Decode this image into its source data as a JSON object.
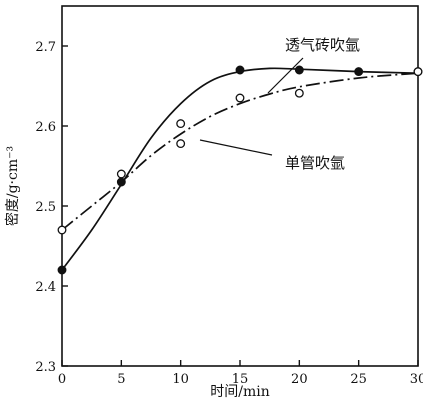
{
  "chart_data": {
    "type": "line",
    "title": "",
    "xlabel": "时间/min",
    "ylabel": "密度/g·cm⁻³",
    "xlim": [
      0,
      30
    ],
    "ylim": [
      2.3,
      2.75
    ],
    "x_ticks": [
      0,
      5,
      10,
      15,
      20,
      25,
      30
    ],
    "y_ticks": [
      2.3,
      2.4,
      2.5,
      2.6,
      2.7
    ],
    "grid": false,
    "legend": "inline annotations",
    "series": [
      {
        "name": "透气砖吹氩",
        "marker": "filled-circle",
        "line_style": "solid",
        "points": [
          {
            "x": 0,
            "y": 2.42
          },
          {
            "x": 5,
            "y": 2.53
          },
          {
            "x": 15,
            "y": 2.67
          },
          {
            "x": 20,
            "y": 2.67
          },
          {
            "x": 25,
            "y": 2.668
          },
          {
            "x": 30,
            "y": 2.668
          }
        ],
        "curve": [
          {
            "x": 0,
            "y": 2.42
          },
          {
            "x": 2.5,
            "y": 2.47
          },
          {
            "x": 5,
            "y": 2.527
          },
          {
            "x": 7.5,
            "y": 2.585
          },
          {
            "x": 10,
            "y": 2.628
          },
          {
            "x": 12.5,
            "y": 2.656
          },
          {
            "x": 15,
            "y": 2.668
          },
          {
            "x": 17.5,
            "y": 2.672
          },
          {
            "x": 20,
            "y": 2.671
          },
          {
            "x": 25,
            "y": 2.668
          },
          {
            "x": 30,
            "y": 2.666
          }
        ]
      },
      {
        "name": "单管吹氩",
        "marker": "open-circle",
        "line_style": "dash-dot",
        "points": [
          {
            "x": 0,
            "y": 2.47
          },
          {
            "x": 5,
            "y": 2.54
          },
          {
            "x": 10,
            "y": 2.578
          },
          {
            "x": 10,
            "y": 2.603
          },
          {
            "x": 15,
            "y": 2.635
          },
          {
            "x": 20,
            "y": 2.641
          },
          {
            "x": 30,
            "y": 2.668
          }
        ],
        "curve": [
          {
            "x": 0,
            "y": 2.47
          },
          {
            "x": 2.5,
            "y": 2.5
          },
          {
            "x": 5,
            "y": 2.53
          },
          {
            "x": 7.5,
            "y": 2.563
          },
          {
            "x": 10,
            "y": 2.59
          },
          {
            "x": 12.5,
            "y": 2.612
          },
          {
            "x": 15,
            "y": 2.628
          },
          {
            "x": 17.5,
            "y": 2.64
          },
          {
            "x": 20,
            "y": 2.649
          },
          {
            "x": 25,
            "y": 2.66
          },
          {
            "x": 30,
            "y": 2.666
          }
        ]
      }
    ],
    "annotations": [
      {
        "text": "透气砖吹氩",
        "series": 0
      },
      {
        "text": "单管吹氩",
        "series": 1
      }
    ]
  }
}
